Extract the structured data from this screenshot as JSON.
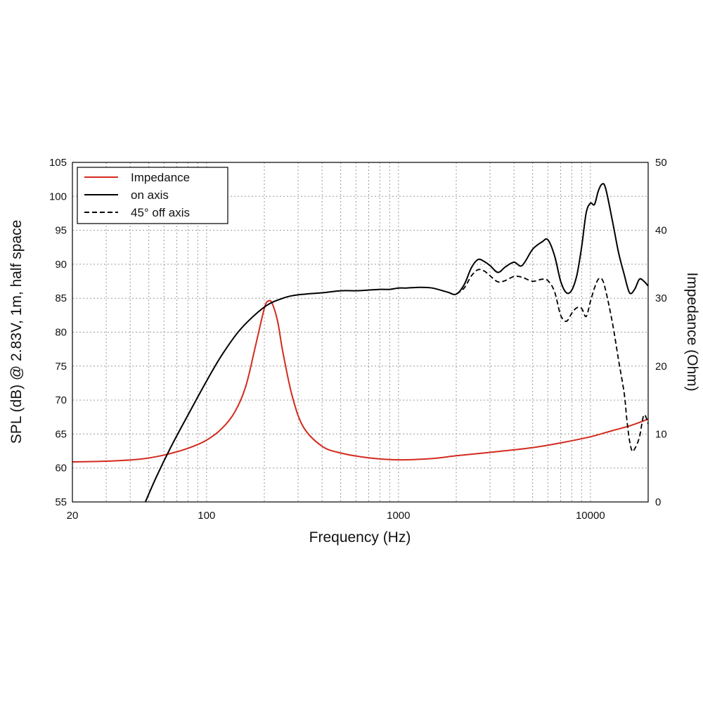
{
  "chart_data": {
    "type": "line",
    "xscale": "log",
    "xlim": [
      20,
      20000
    ],
    "ylim": [
      55,
      105
    ],
    "y2lim": [
      0,
      50
    ],
    "xticks": [
      20,
      100,
      1000,
      10000
    ],
    "xtick_labels": [
      "20",
      "100",
      "1000",
      "10000"
    ],
    "yticks": [
      55,
      60,
      65,
      70,
      75,
      80,
      85,
      90,
      95,
      100,
      105
    ],
    "ytick_labels": [
      "55",
      "60",
      "65",
      "70",
      "75",
      "80",
      "85",
      "90",
      "95",
      "100",
      "105"
    ],
    "y2ticks": [
      0,
      10,
      20,
      30,
      40,
      50
    ],
    "y2tick_labels": [
      "0",
      "10",
      "20",
      "30",
      "40",
      "50"
    ],
    "xlabel": "Frequency (Hz)",
    "ylabel": "SPL (dB) @ 2.83V, 1m, half space",
    "y2label": "Impedance (Ohm)",
    "grid": true,
    "legend_position": "top-left",
    "colors": {
      "impedance": "#d42a1e",
      "spl": "#000000"
    },
    "series": [
      {
        "name": "Impedance",
        "axis": "right",
        "style": "solid",
        "color": "#d42a1e",
        "x": [
          20,
          30,
          45,
          60,
          80,
          100,
          120,
          140,
          160,
          180,
          200,
          210,
          220,
          235,
          250,
          280,
          320,
          400,
          500,
          700,
          1000,
          1500,
          2000,
          3000,
          5000,
          7000,
          10000,
          13000,
          16000,
          20000
        ],
        "y": [
          5.9,
          6.0,
          6.3,
          6.9,
          7.9,
          9.1,
          10.8,
          13.2,
          17.0,
          23.0,
          28.5,
          29.6,
          29.2,
          26.5,
          22.0,
          15.5,
          11.0,
          8.2,
          7.2,
          6.5,
          6.2,
          6.4,
          6.8,
          7.3,
          8.0,
          8.7,
          9.6,
          10.5,
          11.2,
          12.2
        ]
      },
      {
        "name": "on axis",
        "axis": "left",
        "style": "solid",
        "color": "#000000",
        "x": [
          48,
          55,
          65,
          80,
          100,
          120,
          150,
          200,
          250,
          300,
          400,
          500,
          600,
          700,
          800,
          900,
          1000,
          1100,
          1300,
          1500,
          1800,
          2000,
          2200,
          2400,
          2600,
          2800,
          3000,
          3300,
          3600,
          4000,
          4400,
          5000,
          5600,
          6000,
          6500,
          7000,
          7500,
          8000,
          8500,
          9000,
          9500,
          10000,
          10500,
          11000,
          11500,
          12000,
          13000,
          14000,
          15000,
          16000,
          17000,
          18000,
          19000,
          20000
        ],
        "y": [
          55,
          58.8,
          63,
          67.8,
          72.8,
          76.6,
          80.4,
          83.7,
          85,
          85.5,
          85.8,
          86.1,
          86.1,
          86.2,
          86.3,
          86.3,
          86.5,
          86.5,
          86.6,
          86.5,
          85.9,
          85.6,
          87,
          89.5,
          90.7,
          90.4,
          89.8,
          88.8,
          89.6,
          90.3,
          89.8,
          92.2,
          93.3,
          93.6,
          91.3,
          87.5,
          85.8,
          86.2,
          88.4,
          92.5,
          97.5,
          99,
          98.8,
          100.8,
          101.8,
          101.2,
          96.5,
          91.8,
          88.5,
          85.8,
          86.3,
          87.8,
          87.5,
          86.8
        ]
      },
      {
        "name": "45° off axis",
        "axis": "left",
        "style": "dashed",
        "color": "#000000",
        "x": [
          2000,
          2200,
          2400,
          2600,
          2800,
          3000,
          3300,
          3600,
          4000,
          4400,
          5000,
          5600,
          6000,
          6500,
          7000,
          7500,
          8000,
          8500,
          9000,
          9500,
          10000,
          10500,
          11000,
          11500,
          12000,
          13000,
          14000,
          15000,
          15500,
          16000,
          16500,
          17000,
          18000,
          19000,
          20000
        ],
        "y": [
          85.6,
          86.5,
          88.3,
          89.2,
          89,
          88.3,
          87.4,
          87.6,
          88.2,
          88.1,
          87.5,
          87.8,
          87.6,
          86,
          82.5,
          81.6,
          82.8,
          83.6,
          83.5,
          82.3,
          84.5,
          86.5,
          87.8,
          87.8,
          86.2,
          81.5,
          76,
          71,
          67,
          64,
          62.5,
          62.8,
          64.5,
          67.8,
          66.5
        ]
      }
    ]
  }
}
